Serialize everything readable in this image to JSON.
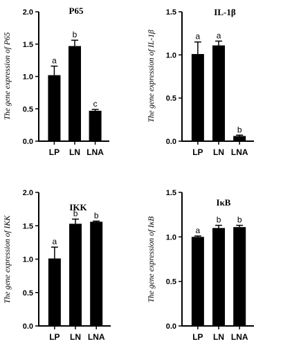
{
  "chart_data": [
    {
      "type": "bar",
      "title": "P65",
      "ylabel": "The gene expression of P65",
      "categories": [
        "LP",
        "LN",
        "LNA"
      ],
      "values": [
        1.02,
        1.47,
        0.47
      ],
      "errors": [
        0.14,
        0.09,
        0.02
      ],
      "significance": [
        "a",
        "b",
        "c"
      ],
      "ylim": [
        0,
        2.0
      ],
      "yticks": [
        "0.0",
        "0.5",
        "1.0",
        "1.5",
        "2.0"
      ],
      "ytick_values": [
        0,
        0.5,
        1.0,
        1.5,
        2.0
      ],
      "bar_color": "#000000"
    },
    {
      "type": "bar",
      "title": "IL-1β",
      "ylabel": "The gene expression of IL-1β",
      "categories": [
        "LP",
        "LN",
        "LNA"
      ],
      "values": [
        1.01,
        1.11,
        0.06
      ],
      "errors": [
        0.14,
        0.05,
        0.01
      ],
      "significance": [
        "a",
        "a",
        "b"
      ],
      "ylim": [
        0,
        1.5
      ],
      "yticks": [
        "0.0",
        "0.5",
        "1.0",
        "1.5"
      ],
      "ytick_values": [
        0,
        0.5,
        1.0,
        1.5
      ],
      "bar_color": "#000000"
    },
    {
      "type": "bar",
      "title": "IKK",
      "ylabel": "The gene expression of IKK",
      "categories": [
        "LP",
        "LN",
        "LNA"
      ],
      "values": [
        1.01,
        1.53,
        1.56
      ],
      "errors": [
        0.17,
        0.07,
        0.01
      ],
      "significance": [
        "a",
        "b",
        "b"
      ],
      "ylim": [
        0,
        2.0
      ],
      "yticks": [
        "0.0",
        "0.5",
        "1.0",
        "1.5",
        "2.0"
      ],
      "ytick_values": [
        0,
        0.5,
        1.0,
        1.5,
        2.0
      ],
      "bar_color": "#000000"
    },
    {
      "type": "bar",
      "title": "IκB",
      "ylabel": "The gene expression of IκB",
      "categories": [
        "LP",
        "LN",
        "LNA"
      ],
      "values": [
        1.0,
        1.1,
        1.11
      ],
      "errors": [
        0.01,
        0.03,
        0.02
      ],
      "significance": [
        "a",
        "b",
        "b"
      ],
      "ylim": [
        0,
        1.5
      ],
      "yticks": [
        "0.0",
        "0.5",
        "1.0",
        "1.5"
      ],
      "ytick_values": [
        0,
        0.5,
        1.0,
        1.5
      ],
      "bar_color": "#000000"
    }
  ]
}
